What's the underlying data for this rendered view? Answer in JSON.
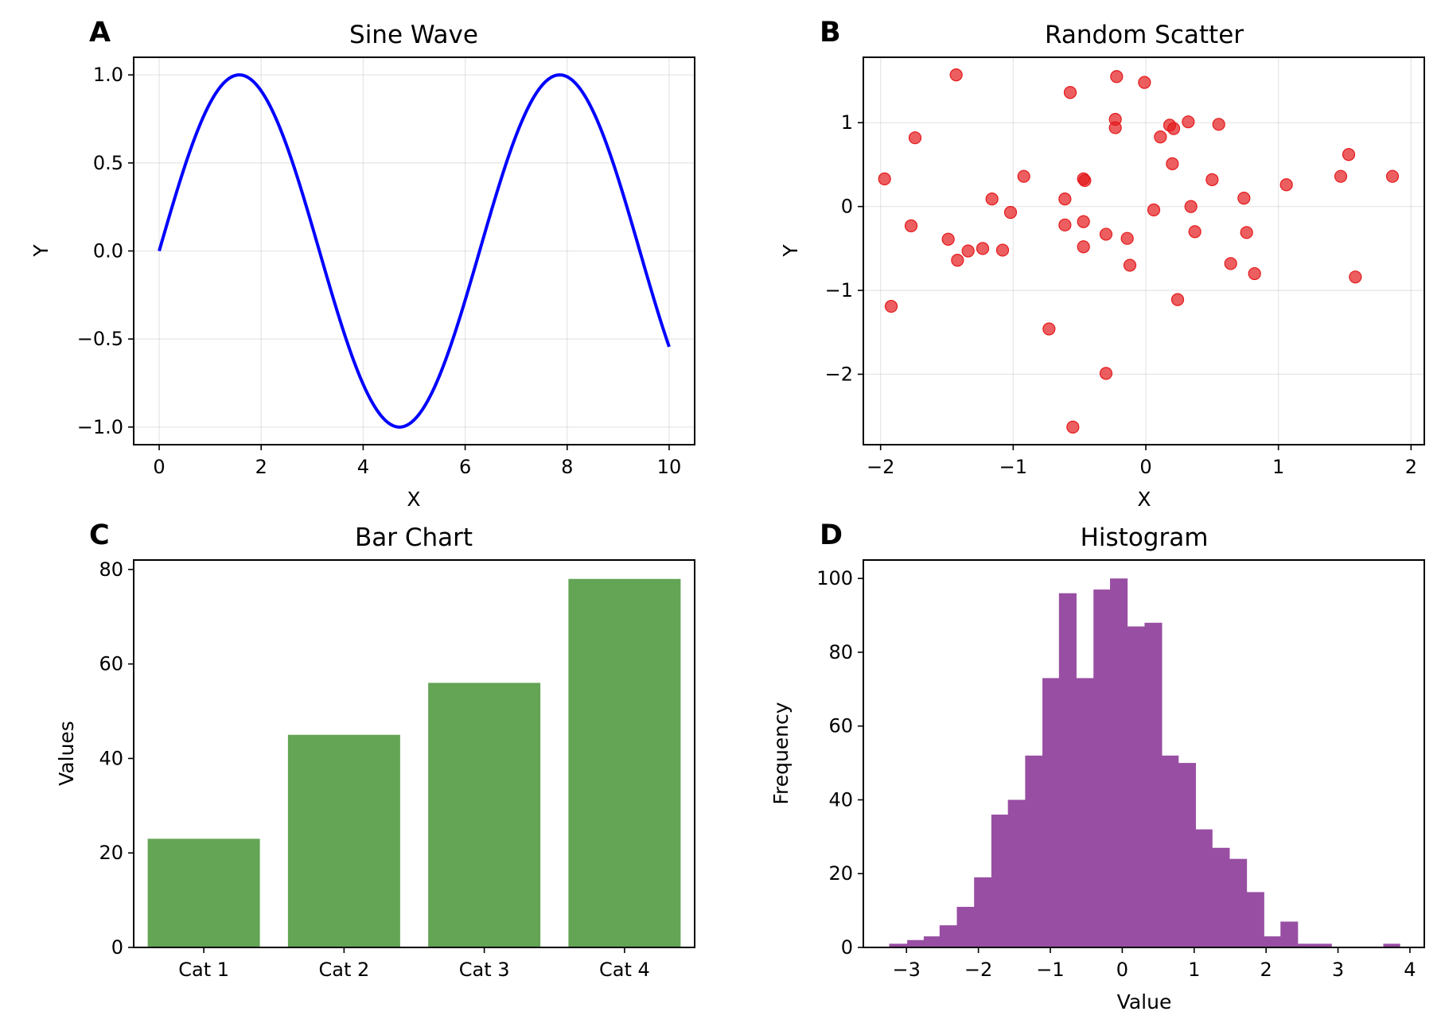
{
  "chart_data": [
    {
      "panel": "A",
      "type": "line",
      "title": "Sine Wave",
      "xlabel": "X",
      "ylabel": "Y",
      "function": "y = sin(x)",
      "x_range": [
        0,
        10
      ],
      "xlim": [
        -0.5,
        10.5
      ],
      "ylim": [
        -1.1,
        1.1
      ],
      "xticks": [
        0,
        2,
        4,
        6,
        8,
        10
      ],
      "xtick_labels": [
        "0",
        "2",
        "4",
        "6",
        "8",
        "10"
      ],
      "yticks": [
        1.0,
        0.5,
        0.0,
        -0.5,
        -1.0
      ],
      "ytick_labels": [
        "1.0",
        "0.5",
        "0.0",
        "−0.5",
        "−1.0"
      ],
      "grid": true,
      "color": "#0000ff"
    },
    {
      "panel": "B",
      "type": "scatter",
      "title": "Random Scatter",
      "xlabel": "X",
      "ylabel": "Y",
      "xlim": [
        -2.13,
        2.1
      ],
      "ylim": [
        -2.84,
        1.78
      ],
      "xticks": [
        -2,
        -1,
        0,
        1,
        2
      ],
      "xtick_labels": [
        "−2",
        "−1",
        "0",
        "1",
        "2"
      ],
      "yticks": [
        1,
        0,
        -1,
        -2
      ],
      "ytick_labels": [
        "1",
        "0",
        "−1",
        "−2"
      ],
      "grid": true,
      "color": "#e41a1c",
      "alpha": 0.7,
      "points": [
        [
          -1.97,
          0.33
        ],
        [
          -1.92,
          -1.19
        ],
        [
          -1.77,
          -0.23
        ],
        [
          -1.74,
          0.82
        ],
        [
          -1.49,
          -0.39
        ],
        [
          -1.43,
          1.57
        ],
        [
          -1.42,
          -0.64
        ],
        [
          -1.34,
          -0.53
        ],
        [
          -1.23,
          -0.5
        ],
        [
          -1.16,
          0.09
        ],
        [
          -1.08,
          -0.52
        ],
        [
          -1.02,
          -0.07
        ],
        [
          -0.92,
          0.36
        ],
        [
          -0.73,
          -1.46
        ],
        [
          -0.61,
          0.09
        ],
        [
          -0.61,
          -0.22
        ],
        [
          -0.57,
          1.36
        ],
        [
          -0.55,
          -2.63
        ],
        [
          -0.47,
          0.33
        ],
        [
          -0.47,
          -0.18
        ],
        [
          -0.47,
          -0.48
        ],
        [
          -0.46,
          0.31
        ],
        [
          -0.3,
          -0.33
        ],
        [
          -0.3,
          -1.99
        ],
        [
          -0.23,
          1.04
        ],
        [
          -0.23,
          0.94
        ],
        [
          -0.22,
          1.55
        ],
        [
          -0.14,
          -0.38
        ],
        [
          -0.12,
          -0.7
        ],
        [
          -0.01,
          1.48
        ],
        [
          0.06,
          -0.04
        ],
        [
          0.11,
          0.83
        ],
        [
          0.18,
          0.97
        ],
        [
          0.2,
          0.51
        ],
        [
          0.21,
          0.93
        ],
        [
          0.24,
          -1.11
        ],
        [
          0.32,
          1.01
        ],
        [
          0.34,
          0.0
        ],
        [
          0.37,
          -0.3
        ],
        [
          0.5,
          0.32
        ],
        [
          0.55,
          0.98
        ],
        [
          0.64,
          -0.68
        ],
        [
          0.74,
          0.1
        ],
        [
          0.76,
          -0.31
        ],
        [
          0.82,
          -0.8
        ],
        [
          1.06,
          0.26
        ],
        [
          1.47,
          0.36
        ],
        [
          1.53,
          0.62
        ],
        [
          1.58,
          -0.84
        ],
        [
          1.86,
          0.36
        ]
      ]
    },
    {
      "panel": "C",
      "type": "bar",
      "title": "Bar Chart",
      "xlabel": "",
      "ylabel": "Values",
      "categories": [
        "Cat 1",
        "Cat 2",
        "Cat 3",
        "Cat 4"
      ],
      "values": [
        23,
        45,
        56,
        78
      ],
      "ylim": [
        0,
        82
      ],
      "yticks": [
        80,
        60,
        40,
        20,
        0
      ],
      "ytick_labels": [
        "80",
        "60",
        "40",
        "20",
        "0"
      ],
      "grid": false,
      "color": "#63a455"
    },
    {
      "panel": "D",
      "type": "bar",
      "subtype": "histogram",
      "title": "Histogram",
      "xlabel": "Value",
      "ylabel": "Frequency",
      "xlim": [
        -3.6,
        4.2
      ],
      "ylim": [
        0,
        105
      ],
      "xticks": [
        -3,
        -2,
        -1,
        0,
        1,
        2,
        3,
        4
      ],
      "xtick_labels": [
        "−3",
        "−2",
        "−1",
        "0",
        "1",
        "2",
        "3",
        "4"
      ],
      "yticks": [
        100,
        80,
        60,
        40,
        20,
        0
      ],
      "ytick_labels": [
        "100",
        "80",
        "60",
        "40",
        "20",
        "0"
      ],
      "grid": false,
      "color": "#984ea3",
      "bin_edges": [
        -3.24,
        -2.99,
        -2.76,
        -2.54,
        -2.3,
        -2.06,
        -1.82,
        -1.59,
        -1.35,
        -1.11,
        -0.88,
        -0.64,
        -0.4,
        -0.17,
        0.07,
        0.31,
        0.55,
        0.78,
        1.02,
        1.25,
        1.49,
        1.73,
        1.97,
        2.2,
        2.44,
        2.68,
        2.91,
        3.15,
        3.39,
        3.63,
        3.86
      ],
      "counts": [
        1,
        2,
        3,
        6,
        11,
        19,
        36,
        40,
        52,
        73,
        96,
        73,
        97,
        100,
        87,
        88,
        52,
        50,
        32,
        27,
        24,
        15,
        3,
        7,
        1,
        1,
        0,
        0,
        0,
        1
      ]
    }
  ]
}
